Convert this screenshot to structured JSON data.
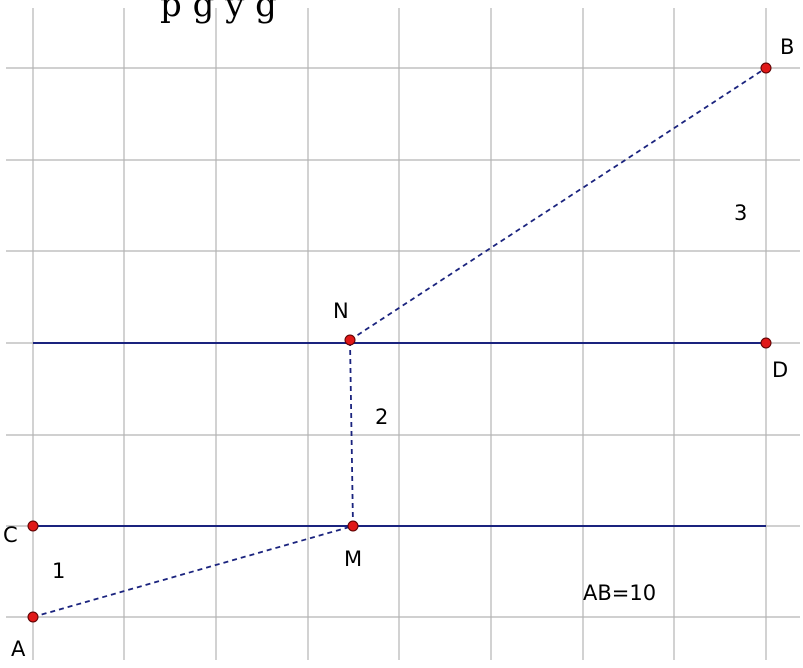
{
  "title_fragment": "p g y g",
  "points": [
    {
      "id": "A",
      "label": "A"
    },
    {
      "id": "B",
      "label": "B"
    },
    {
      "id": "C",
      "label": "C"
    },
    {
      "id": "D",
      "label": "D"
    },
    {
      "id": "M",
      "label": "M"
    },
    {
      "id": "N",
      "label": "N"
    }
  ],
  "segment_labels": [
    "1",
    "2",
    "3"
  ],
  "measurement": "AB=10",
  "colors": {
    "grid": "#b4b4b4",
    "line": "#1a237e",
    "point_fill": "#e01818",
    "background": "#ffffff"
  }
}
